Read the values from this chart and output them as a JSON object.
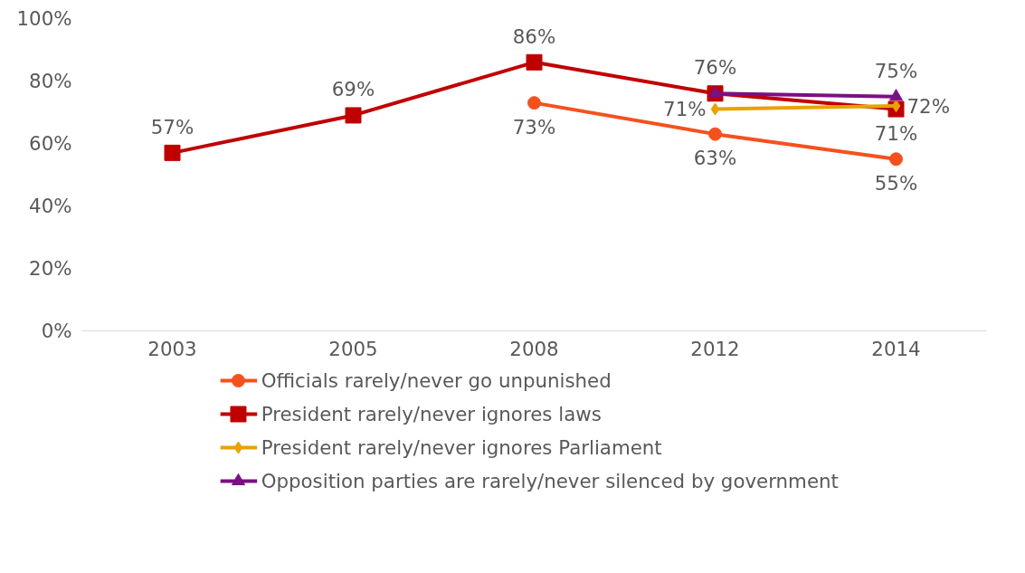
{
  "chart_data": {
    "type": "line",
    "categories": [
      "2003",
      "2005",
      "2008",
      "2012",
      "2014"
    ],
    "series": [
      {
        "name": "Officials rarely/never go unpunished",
        "color": "#f4511e",
        "values": [
          null,
          null,
          73,
          63,
          55
        ],
        "value_labels": [
          null,
          null,
          "73%",
          "63%",
          "55%"
        ],
        "marker": "circle"
      },
      {
        "name": "President rarely/never ignores laws",
        "color": "#c00000",
        "values": [
          57,
          69,
          86,
          76,
          71
        ],
        "value_labels": [
          "57%",
          "69%",
          "86%",
          null,
          "71%"
        ],
        "marker": "square"
      },
      {
        "name": "President rarely/never ignores Parliament",
        "color": "#e8a202",
        "values": [
          null,
          null,
          null,
          71,
          72
        ],
        "value_labels": [
          null,
          null,
          null,
          "71%",
          "72%"
        ],
        "marker": "diamond"
      },
      {
        "name": "Opposition parties are rarely/never silenced by government",
        "color": "#7b1082",
        "values": [
          null,
          null,
          null,
          76,
          75
        ],
        "value_labels": [
          null,
          null,
          null,
          "76%",
          "75%"
        ],
        "marker": "triangle"
      }
    ],
    "ylim": [
      0,
      100
    ],
    "yticks": [
      {
        "value": 0,
        "label": "0%"
      },
      {
        "value": 20,
        "label": "20%"
      },
      {
        "value": 40,
        "label": "40%"
      },
      {
        "value": 60,
        "label": "60%"
      },
      {
        "value": 80,
        "label": "80%"
      },
      {
        "value": 100,
        "label": "100%"
      }
    ],
    "grid": false,
    "legend": "bottom",
    "line_style": "solid"
  }
}
